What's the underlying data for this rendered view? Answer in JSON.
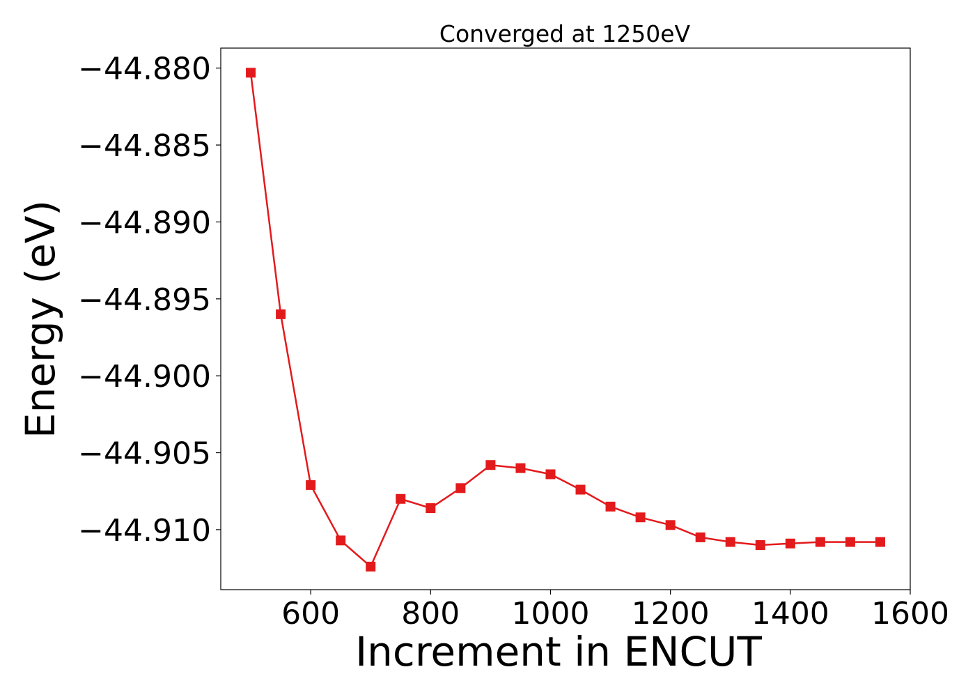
{
  "chart_data": {
    "type": "line",
    "title": "Converged at 1250eV",
    "xlabel": "Increment in ENCUT",
    "ylabel": "Energy (eV)",
    "xlim": [
      450,
      1600
    ],
    "ylim": [
      -44.9139,
      -44.8787
    ],
    "xticks": [
      600,
      800,
      1000,
      1200,
      1400,
      1600
    ],
    "xtick_labels": [
      "600",
      "800",
      "1000",
      "1200",
      "1400",
      "1600"
    ],
    "yticks": [
      -44.88,
      -44.885,
      -44.89,
      -44.895,
      -44.9,
      -44.905,
      -44.91
    ],
    "ytick_labels": [
      "−44.880",
      "−44.885",
      "−44.890",
      "−44.895",
      "−44.900",
      "−44.905",
      "−44.910"
    ],
    "grid": false,
    "legend": "none",
    "series": [
      {
        "color": "#e31a1c",
        "marker": "square",
        "x": [
          500,
          550,
          600,
          650,
          700,
          750,
          800,
          850,
          900,
          950,
          1000,
          1050,
          1100,
          1150,
          1200,
          1250,
          1300,
          1350,
          1400,
          1450,
          1500,
          1550
        ],
        "y": [
          -44.8803,
          -44.896,
          -44.9071,
          -44.9107,
          -44.9124,
          -44.908,
          -44.9086,
          -44.9073,
          -44.9058,
          -44.906,
          -44.9064,
          -44.9074,
          -44.9085,
          -44.9092,
          -44.9097,
          -44.9105,
          -44.9108,
          -44.911,
          -44.9109,
          -44.9108,
          -44.9108,
          -44.9108
        ]
      }
    ]
  }
}
